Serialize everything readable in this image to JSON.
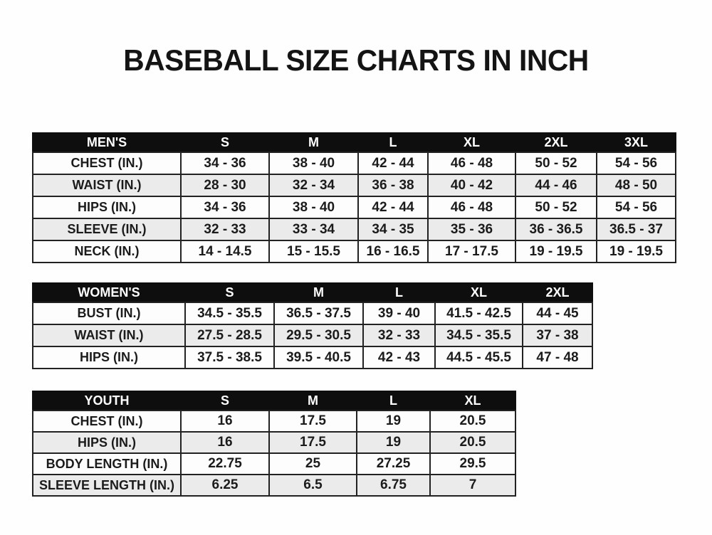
{
  "page": {
    "title": "BASEBALL SIZE CHARTS IN INCH"
  },
  "colors": {
    "background": "#fefefe",
    "header_bg": "#0e0e0e",
    "header_text": "#ffffff",
    "row_bg": "#fdfdfd",
    "row_alt_bg": "#ebebeb",
    "border": "#222222",
    "text": "#161616"
  },
  "tables": [
    {
      "id": "mens",
      "name": "MEN'S",
      "sizes": [
        "S",
        "M",
        "L",
        "XL",
        "2XL",
        "3XL"
      ],
      "rows": [
        {
          "label": "CHEST (IN.)",
          "values": [
            "34 - 36",
            "38 - 40",
            "42 - 44",
            "46 - 48",
            "50 - 52",
            "54 - 56"
          ]
        },
        {
          "label": "WAIST (IN.)",
          "values": [
            "28 - 30",
            "32 - 34",
            "36 - 38",
            "40 - 42",
            "44 - 46",
            "48 - 50"
          ]
        },
        {
          "label": "HIPS (IN.)",
          "values": [
            "34 - 36",
            "38 - 40",
            "42 - 44",
            "46 - 48",
            "50 - 52",
            "54 - 56"
          ]
        },
        {
          "label": "SLEEVE (IN.)",
          "values": [
            "32 - 33",
            "33 - 34",
            "34 - 35",
            "35 - 36",
            "36 - 36.5",
            "36.5 - 37"
          ]
        },
        {
          "label": "NECK (IN.)",
          "values": [
            "14 - 14.5",
            "15 - 15.5",
            "16 - 16.5",
            "17 - 17.5",
            "19 - 19.5",
            "19 - 19.5"
          ]
        }
      ]
    },
    {
      "id": "womens",
      "name": "WOMEN'S",
      "sizes": [
        "S",
        "M",
        "L",
        "XL",
        "2XL"
      ],
      "rows": [
        {
          "label": "BUST (IN.)",
          "values": [
            "34.5 - 35.5",
            "36.5 - 37.5",
            "39 - 40",
            "41.5 - 42.5",
            "44 - 45"
          ]
        },
        {
          "label": "WAIST (IN.)",
          "values": [
            "27.5 - 28.5",
            "29.5 - 30.5",
            "32 - 33",
            "34.5 - 35.5",
            "37 - 38"
          ]
        },
        {
          "label": "HIPS (IN.)",
          "values": [
            "37.5 - 38.5",
            "39.5 - 40.5",
            "42 - 43",
            "44.5 - 45.5",
            "47 - 48"
          ]
        }
      ]
    },
    {
      "id": "youth",
      "name": "YOUTH",
      "sizes": [
        "S",
        "M",
        "L",
        "XL"
      ],
      "rows": [
        {
          "label": "CHEST (IN.)",
          "values": [
            "16",
            "17.5",
            "19",
            "20.5"
          ]
        },
        {
          "label": "HIPS (IN.)",
          "values": [
            "16",
            "17.5",
            "19",
            "20.5"
          ]
        },
        {
          "label": "BODY LENGTH (IN.)",
          "values": [
            "22.75",
            "25",
            "27.25",
            "29.5"
          ]
        },
        {
          "label": "SLEEVE LENGTH (IN.)",
          "values": [
            "6.25",
            "6.5",
            "6.75",
            "7"
          ]
        }
      ]
    }
  ]
}
